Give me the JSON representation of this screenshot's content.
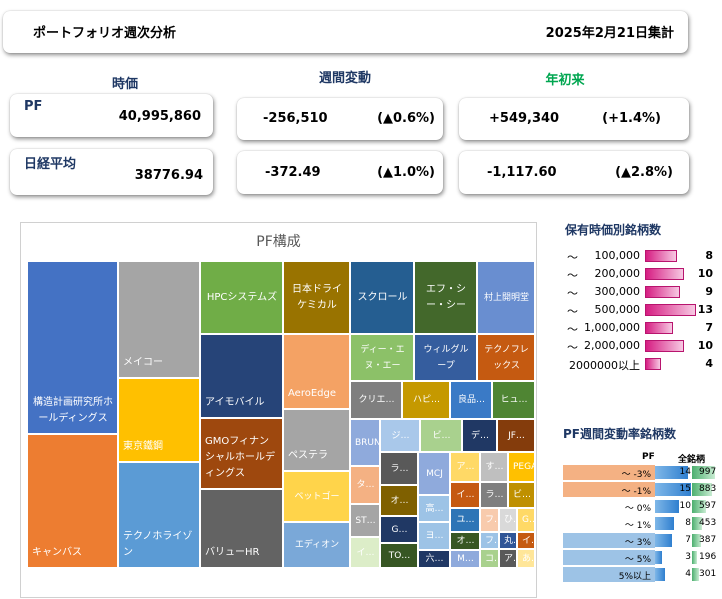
{
  "header": {
    "title": "ポートフォリオ週次分析",
    "date": "2025年2月21日集計"
  },
  "columns": {
    "price": "時価",
    "weekly": "週間変動",
    "ytd": "年初来"
  },
  "pf": {
    "label": "PF",
    "price": "40,995,860",
    "weekly_change": "-256,510",
    "weekly_pct": "(▲0.6%)",
    "ytd_change": "+549,340",
    "ytd_pct": "(+1.4%)"
  },
  "nikkei": {
    "label": "日経平均",
    "price": "38776.94",
    "weekly_change": "-372.49",
    "weekly_pct": "(▲1.0%)",
    "ytd_change": "-1,117.60",
    "ytd_pct": "(▲2.8%)"
  },
  "colors": {
    "ytd_head": "#00a650",
    "nav": "#1f3864",
    "pink": "#d61d82",
    "down": "#f4b183",
    "up": "#9dc3e6"
  },
  "treemap": {
    "title": "PF構成",
    "tiles": [
      {
        "label": "構造計画研究所ホールディングス",
        "color": "#4472c4"
      },
      {
        "label": "キャンバス",
        "color": "#ed7d31"
      },
      {
        "label": "メイコー",
        "color": "#a5a5a5"
      },
      {
        "label": "東京鐵鋼",
        "color": "#ffc000"
      },
      {
        "label": "テクノホライゾン",
        "color": "#5b9bd5"
      },
      {
        "label": "HPCシステムズ",
        "color": "#70ad47"
      },
      {
        "label": "アイモバイル",
        "color": "#264478"
      },
      {
        "label": "GMOフィナンシャルホールディングス",
        "color": "#9e480e"
      },
      {
        "label": "バリューHR",
        "color": "#636363"
      },
      {
        "label": "日本ドライケミカル",
        "color": "#997300"
      },
      {
        "label": "AeroEdge",
        "color": "#f4a264"
      },
      {
        "label": "ペステラ",
        "color": "#a5a5a5"
      },
      {
        "label": "ベットゴー",
        "color": "#ffd44a"
      },
      {
        "label": "エディオン",
        "color": "#7aa8d8"
      },
      {
        "label": "スクロール",
        "color": "#255e91"
      },
      {
        "label": "エフ・シー・シー",
        "color": "#43682b"
      },
      {
        "label": "村上開明堂",
        "color": "#698ed0"
      },
      {
        "label": "ディー・エヌ・エー",
        "color": "#8cc168"
      },
      {
        "label": "ウィルグループ",
        "color": "#355d9e"
      },
      {
        "label": "テクノフレックス",
        "color": "#c55a11"
      },
      {
        "label": "クリエ…",
        "color": "#7f7f7f"
      },
      {
        "label": "ハピ…",
        "color": "#c59900"
      },
      {
        "label": "良品…",
        "color": "#3a7ac6"
      },
      {
        "label": "ヒュ…",
        "color": "#4f8533"
      },
      {
        "label": "BRUNO",
        "color": "#8faadc"
      },
      {
        "label": "ジ…",
        "color": "#a9c8ea"
      },
      {
        "label": "ビ…",
        "color": "#a9d18e"
      },
      {
        "label": "デ…",
        "color": "#203864"
      },
      {
        "label": "JF…",
        "color": "#843c0c"
      },
      {
        "label": "タ…",
        "color": "#f4b183"
      },
      {
        "label": "ラ…",
        "color": "#595959"
      },
      {
        "label": "MCJ",
        "color": "#8faadc"
      },
      {
        "label": "ア…",
        "color": "#ffd966"
      },
      {
        "label": "す…",
        "color": "#bfbfbf"
      },
      {
        "label": "PEGA…",
        "color": "#ffc000"
      },
      {
        "label": "ST…",
        "color": "#a5a5a5"
      },
      {
        "label": "オ…",
        "color": "#7f6000"
      },
      {
        "label": "高…",
        "color": "#9dc3e6"
      },
      {
        "label": "イ…",
        "color": "#c55a11"
      },
      {
        "label": "ラ…",
        "color": "#7f7f7f"
      },
      {
        "label": "ビ…",
        "color": "#bf9000"
      },
      {
        "label": "G…",
        "color": "#203864"
      },
      {
        "label": "ヨ…",
        "color": "#9dc3e6"
      },
      {
        "label": "ユ…",
        "color": "#2e75b6"
      },
      {
        "label": "フ…",
        "color": "#f8cbad"
      },
      {
        "label": "ひ…",
        "color": "#d9d9d9"
      },
      {
        "label": "G…",
        "color": "#ffd966"
      },
      {
        "label": "イ…",
        "color": "#dcedc8"
      },
      {
        "label": "TO…",
        "color": "#375623"
      },
      {
        "label": "六…",
        "color": "#203864"
      },
      {
        "label": "オ…",
        "color": "#385723"
      },
      {
        "label": "フ…",
        "color": "#9dc3e6"
      },
      {
        "label": "丸…",
        "color": "#2f5597"
      },
      {
        "label": "イ…",
        "color": "#c55a11"
      },
      {
        "label": "M…",
        "color": "#8faadc"
      },
      {
        "label": "コ…",
        "color": "#a9d18e"
      },
      {
        "label": "ア…",
        "color": "#595959"
      },
      {
        "label": "あ…",
        "color": "#ffe699"
      }
    ]
  },
  "holdings_by_value": {
    "title": "保有時価別銘柄数",
    "rows": [
      {
        "tilde": "～",
        "label": "100,000",
        "count": "8",
        "ratio": 0.62
      },
      {
        "tilde": "～",
        "label": "200,000",
        "count": "10",
        "ratio": 0.77
      },
      {
        "tilde": "～",
        "label": "300,000",
        "count": "9",
        "ratio": 0.69
      },
      {
        "tilde": "～",
        "label": "500,000",
        "count": "13",
        "ratio": 1.0
      },
      {
        "tilde": "～",
        "label": "1,000,000",
        "count": "7",
        "ratio": 0.54
      },
      {
        "tilde": "～",
        "label": "2,000,000",
        "count": "10",
        "ratio": 0.77
      },
      {
        "tilde": "",
        "label": "2000000以上",
        "count": "4",
        "ratio": 0.31
      }
    ]
  },
  "weekly_change_table": {
    "title": "PF週間変動率銘柄数",
    "head_pf": "PF",
    "head_all": "全銘柄",
    "rows": [
      {
        "label": "～ -3%",
        "pf": "14",
        "pf_ratio": 0.93,
        "all": "997",
        "all_ratio": 1.0,
        "tone": "down"
      },
      {
        "label": "～ -1%",
        "pf": "15",
        "pf_ratio": 1.0,
        "all": "883",
        "all_ratio": 0.89,
        "tone": "down"
      },
      {
        "label": "～ 0%",
        "pf": "10",
        "pf_ratio": 0.67,
        "all": "597",
        "all_ratio": 0.6,
        "tone": "none"
      },
      {
        "label": "～ 1%",
        "pf": "8",
        "pf_ratio": 0.53,
        "all": "453",
        "all_ratio": 0.45,
        "tone": "none"
      },
      {
        "label": "～ 3%",
        "pf": "7",
        "pf_ratio": 0.47,
        "all": "387",
        "all_ratio": 0.39,
        "tone": "up"
      },
      {
        "label": "～ 5%",
        "pf": "3",
        "pf_ratio": 0.2,
        "all": "196",
        "all_ratio": 0.2,
        "tone": "up"
      },
      {
        "label": "5%以上",
        "pf": "4",
        "pf_ratio": 0.27,
        "all": "301",
        "all_ratio": 0.3,
        "tone": "up"
      }
    ]
  }
}
